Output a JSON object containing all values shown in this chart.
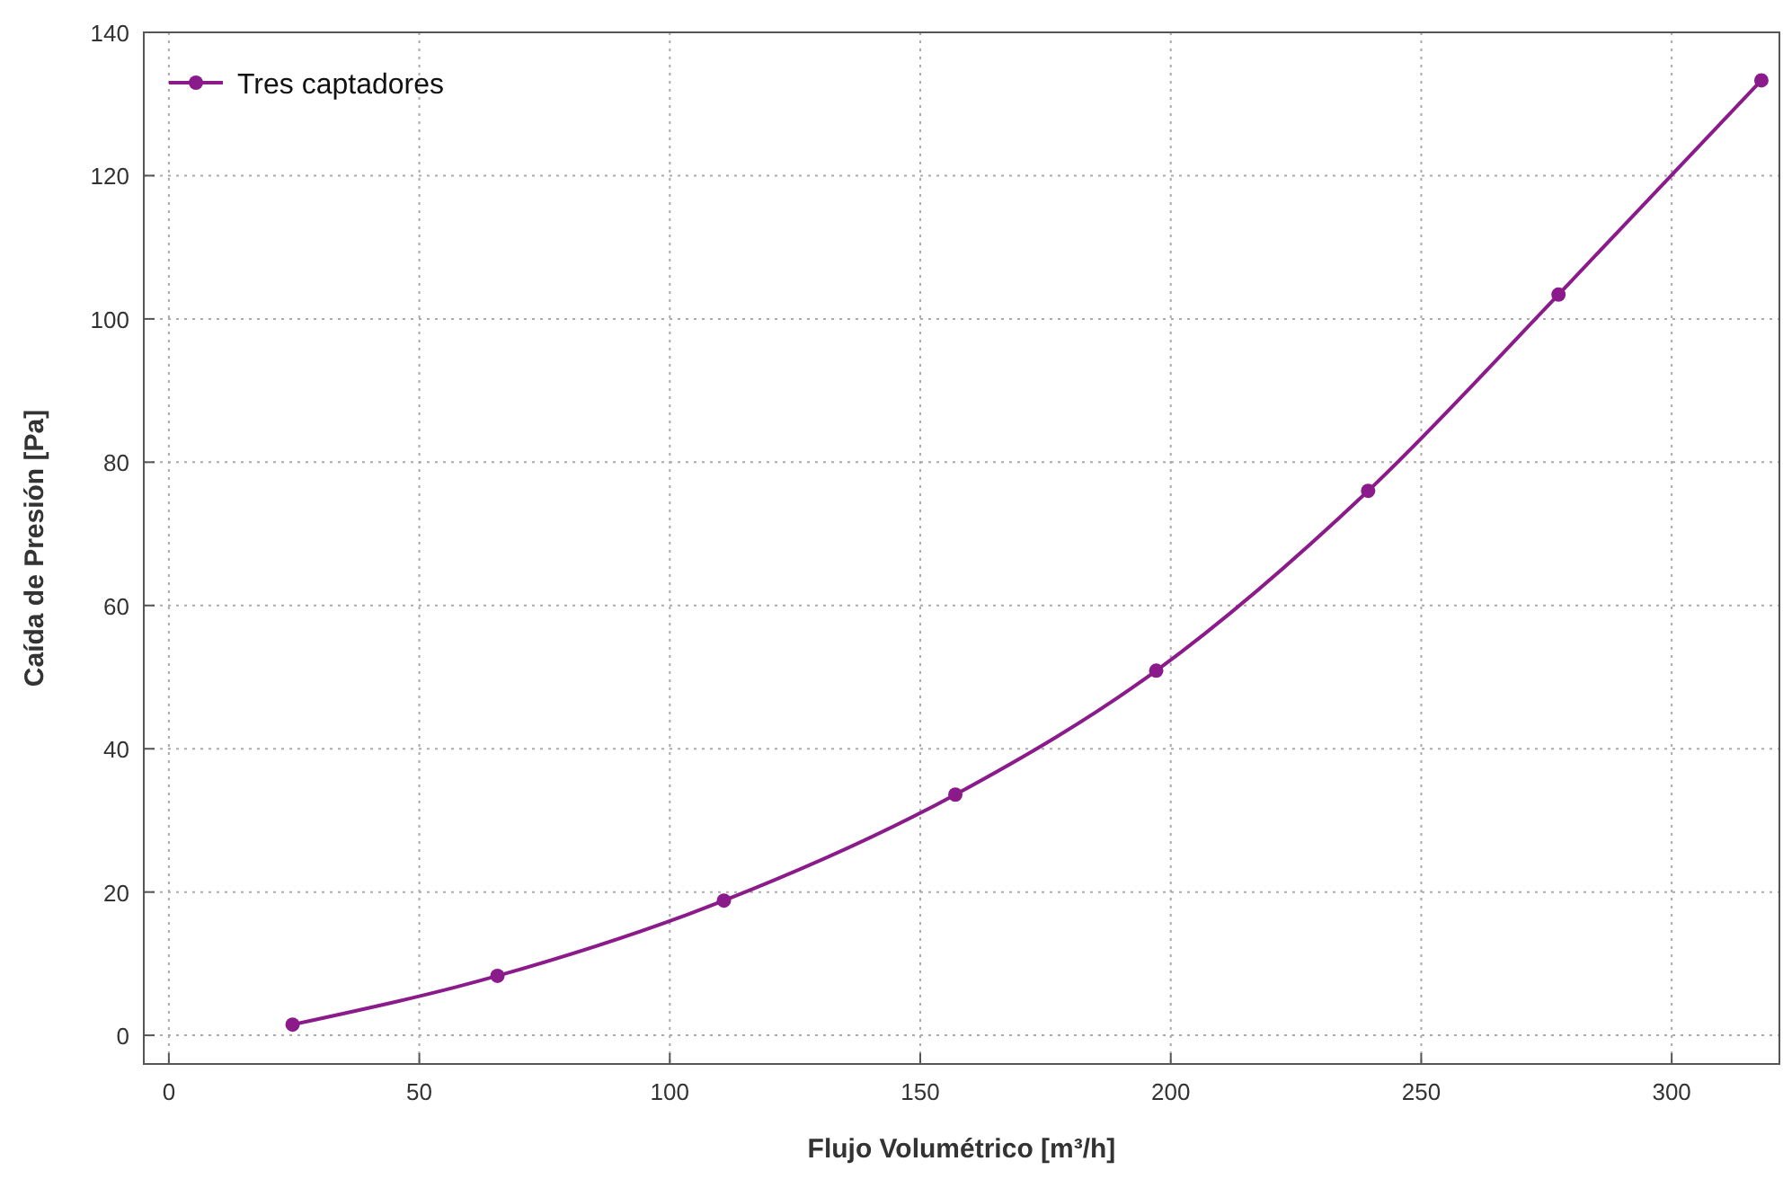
{
  "chart_data": {
    "type": "line",
    "xlabel": "Flujo Volumétrico [m³/h]",
    "ylabel": "Caída de Presión  [Pa]",
    "xlim": [
      -5,
      321.5
    ],
    "ylim": [
      -4,
      140
    ],
    "xticks": [
      0,
      50,
      100,
      150,
      200,
      250,
      300
    ],
    "yticks": [
      0,
      20,
      40,
      60,
      80,
      100,
      120,
      140
    ],
    "grid": true,
    "legend": "top left",
    "marker": "circle",
    "line_style": "solid",
    "series": [
      {
        "name": "Tres captadores",
        "color": "#8b1a8b",
        "x": [
          24.7,
          65.6,
          110.8,
          157,
          197.1,
          239.4,
          277.4,
          317.9
        ],
        "values": [
          1.5,
          8.3,
          18.8,
          33.6,
          50.9,
          76.0,
          103.4,
          133.3
        ]
      }
    ]
  }
}
